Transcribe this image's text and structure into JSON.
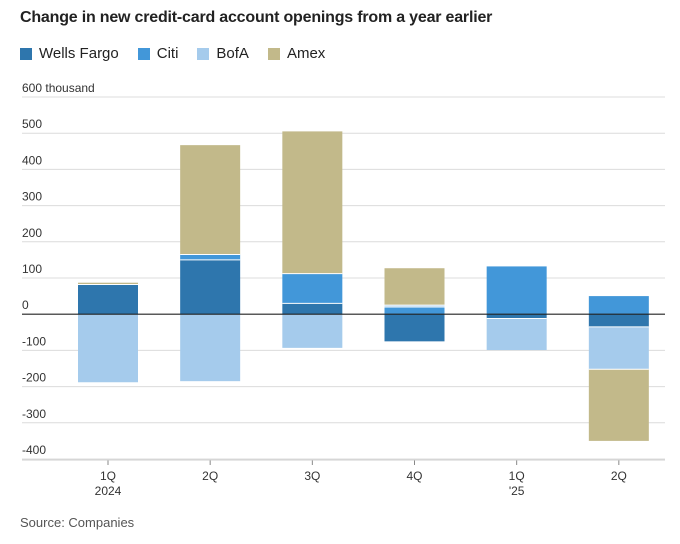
{
  "title": "Change in new credit-card account openings from a year earlier",
  "source": "Source: Companies",
  "legend": [
    {
      "name": "Wells Fargo",
      "color": "#2e76ad"
    },
    {
      "name": "Citi",
      "color": "#4297d9"
    },
    {
      "name": "BofA",
      "color": "#a5cbec"
    },
    {
      "name": "Amex",
      "color": "#c2b98a"
    }
  ],
  "chart_data": {
    "type": "bar",
    "stacked": true,
    "categories": [
      "1Q 2024",
      "2Q",
      "3Q",
      "4Q",
      "1Q '25",
      "2Q"
    ],
    "category_labels": [
      [
        "1Q",
        "2024"
      ],
      [
        "2Q",
        ""
      ],
      [
        "3Q",
        ""
      ],
      [
        "4Q",
        ""
      ],
      [
        "1Q",
        "'25"
      ],
      [
        "2Q",
        ""
      ]
    ],
    "series": [
      {
        "name": "Wells Fargo",
        "color": "#2e76ad",
        "values": [
          82,
          150,
          30,
          -75,
          -12,
          -35
        ]
      },
      {
        "name": "Citi",
        "color": "#4297d9",
        "values": [
          0,
          15,
          82,
          20,
          132,
          50
        ]
      },
      {
        "name": "BofA",
        "color": "#a5cbec",
        "values": [
          -188,
          -185,
          -93,
          5,
          -87,
          -117
        ]
      },
      {
        "name": "Amex",
        "color": "#c2b98a",
        "values": [
          5,
          302,
          393,
          102,
          0,
          -198
        ]
      }
    ],
    "ylabel": "thousand",
    "ylim": [
      -400,
      600
    ],
    "yticks": [
      -400,
      -300,
      -200,
      -100,
      0,
      100,
      200,
      300,
      400,
      500,
      600
    ],
    "ytick_labels": [
      "-400",
      "-300",
      "-200",
      "-100",
      "0",
      "100",
      "200",
      "300",
      "400",
      "500",
      "600 thousand"
    ],
    "grid": true
  }
}
